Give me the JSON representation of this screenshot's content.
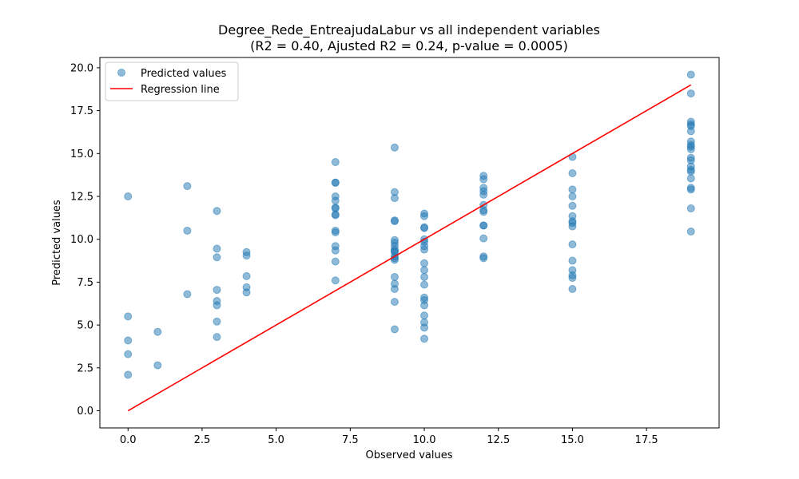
{
  "chart_data": {
    "type": "scatter",
    "title_line1": "Degree_Rede_EntreajudaLabur vs all independent variables",
    "title_line2": "(R2 = 0.40, Ajusted R2 = 0.24, p-value = 0.0005)",
    "xlabel": "Observed values",
    "ylabel": "Predicted values",
    "xlim": [
      -0.95,
      19.95
    ],
    "ylim": [
      -1.0,
      20.6
    ],
    "x_ticks": [
      0.0,
      2.5,
      5.0,
      7.5,
      10.0,
      12.5,
      15.0,
      17.5
    ],
    "x_tick_labels": [
      "0.0",
      "2.5",
      "5.0",
      "7.5",
      "10.0",
      "12.5",
      "15.0",
      "17.5"
    ],
    "y_ticks": [
      0.0,
      2.5,
      5.0,
      7.5,
      10.0,
      12.5,
      15.0,
      17.5,
      20.0
    ],
    "y_tick_labels": [
      "0.0",
      "2.5",
      "5.0",
      "7.5",
      "10.0",
      "12.5",
      "15.0",
      "17.5",
      "20.0"
    ],
    "grid": false,
    "legend_position": "top-left",
    "series": [
      {
        "name": "Predicted values",
        "kind": "scatter",
        "color": "#1f77b4",
        "points": [
          [
            0,
            12.5
          ],
          [
            0,
            5.5
          ],
          [
            0,
            4.1
          ],
          [
            0,
            3.3
          ],
          [
            0,
            2.1
          ],
          [
            1,
            4.6
          ],
          [
            1,
            2.65
          ],
          [
            2,
            13.1
          ],
          [
            2,
            10.5
          ],
          [
            2,
            6.8
          ],
          [
            3,
            11.65
          ],
          [
            3,
            9.45
          ],
          [
            3,
            8.95
          ],
          [
            3,
            7.05
          ],
          [
            3,
            6.4
          ],
          [
            3,
            6.15
          ],
          [
            3,
            5.2
          ],
          [
            3,
            4.3
          ],
          [
            4,
            9.25
          ],
          [
            4,
            9.05
          ],
          [
            4,
            7.85
          ],
          [
            4,
            7.2
          ],
          [
            4,
            6.9
          ],
          [
            7,
            14.5
          ],
          [
            7,
            13.3
          ],
          [
            7,
            13.3
          ],
          [
            7,
            12.5
          ],
          [
            7,
            12.25
          ],
          [
            7,
            11.85
          ],
          [
            7,
            11.8
          ],
          [
            7,
            11.45
          ],
          [
            7,
            11.4
          ],
          [
            7,
            10.5
          ],
          [
            7,
            10.4
          ],
          [
            7,
            9.6
          ],
          [
            7,
            9.35
          ],
          [
            7,
            8.7
          ],
          [
            7,
            7.6
          ],
          [
            9,
            15.35
          ],
          [
            9,
            12.75
          ],
          [
            9,
            12.4
          ],
          [
            9,
            11.1
          ],
          [
            9,
            11.05
          ],
          [
            9,
            9.95
          ],
          [
            9,
            9.8
          ],
          [
            9,
            9.6
          ],
          [
            9,
            9.4
          ],
          [
            9,
            9.3
          ],
          [
            9,
            9.25
          ],
          [
            9,
            9.0
          ],
          [
            9,
            8.9
          ],
          [
            9,
            8.8
          ],
          [
            9,
            7.8
          ],
          [
            9,
            7.4
          ],
          [
            9,
            7.1
          ],
          [
            9,
            6.35
          ],
          [
            9,
            4.75
          ],
          [
            10,
            11.5
          ],
          [
            10,
            11.35
          ],
          [
            10,
            10.7
          ],
          [
            10,
            10.65
          ],
          [
            10,
            10.0
          ],
          [
            10,
            9.85
          ],
          [
            10,
            9.6
          ],
          [
            10,
            9.4
          ],
          [
            10,
            8.6
          ],
          [
            10,
            8.2
          ],
          [
            10,
            7.8
          ],
          [
            10,
            7.35
          ],
          [
            10,
            6.6
          ],
          [
            10,
            6.45
          ],
          [
            10,
            6.15
          ],
          [
            10,
            5.55
          ],
          [
            10,
            5.15
          ],
          [
            10,
            4.85
          ],
          [
            10,
            4.2
          ],
          [
            12,
            13.7
          ],
          [
            12,
            13.5
          ],
          [
            12,
            13.0
          ],
          [
            12,
            12.8
          ],
          [
            12,
            12.6
          ],
          [
            12,
            12.0
          ],
          [
            12,
            11.7
          ],
          [
            12,
            11.6
          ],
          [
            12,
            10.8
          ],
          [
            12,
            10.8
          ],
          [
            12,
            10.05
          ],
          [
            12,
            9.0
          ],
          [
            12,
            8.9
          ],
          [
            15,
            14.8
          ],
          [
            15,
            13.85
          ],
          [
            15,
            12.9
          ],
          [
            15,
            12.5
          ],
          [
            15,
            11.95
          ],
          [
            15,
            11.35
          ],
          [
            15,
            11.05
          ],
          [
            15,
            10.95
          ],
          [
            15,
            10.75
          ],
          [
            15,
            9.7
          ],
          [
            15,
            8.75
          ],
          [
            15,
            8.2
          ],
          [
            15,
            7.9
          ],
          [
            15,
            7.75
          ],
          [
            15,
            7.1
          ],
          [
            19,
            19.6
          ],
          [
            19,
            18.5
          ],
          [
            19,
            16.85
          ],
          [
            19,
            16.7
          ],
          [
            19,
            16.6
          ],
          [
            19,
            16.3
          ],
          [
            19,
            15.7
          ],
          [
            19,
            15.5
          ],
          [
            19,
            15.4
          ],
          [
            19,
            15.25
          ],
          [
            19,
            14.75
          ],
          [
            19,
            14.6
          ],
          [
            19,
            14.25
          ],
          [
            19,
            14.05
          ],
          [
            19,
            13.95
          ],
          [
            19,
            13.55
          ],
          [
            19,
            13.0
          ],
          [
            19,
            12.9
          ],
          [
            19,
            11.8
          ],
          [
            19,
            10.45
          ]
        ]
      },
      {
        "name": "Regression line",
        "kind": "line",
        "color": "#ff0000",
        "points": [
          [
            0,
            0
          ],
          [
            19,
            19
          ]
        ]
      }
    ]
  }
}
